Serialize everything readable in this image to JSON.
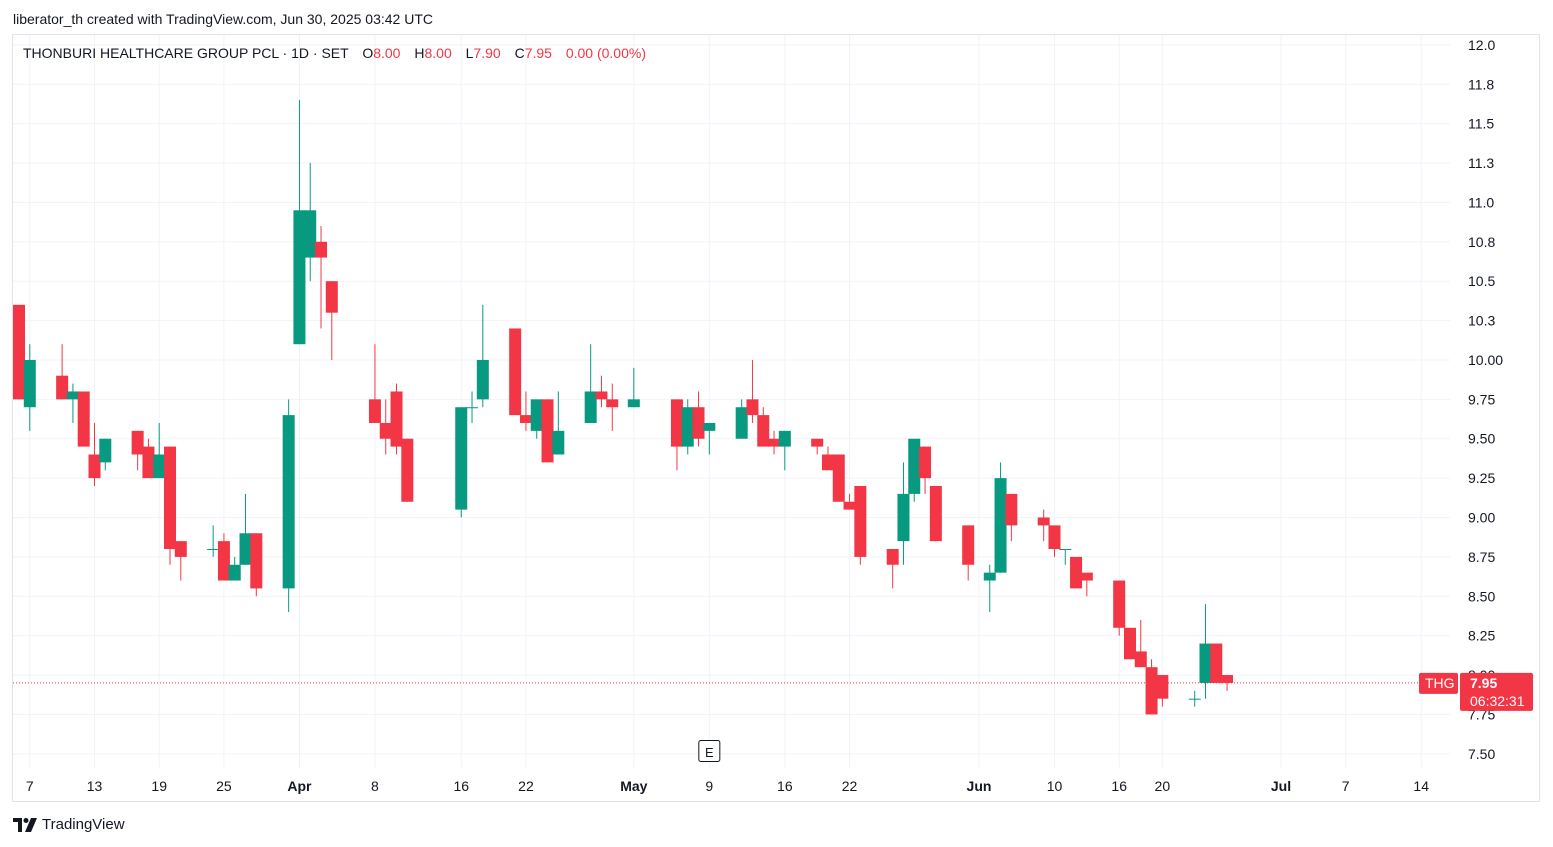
{
  "header": {
    "attribution": "liberator_th created with TradingView.com, Jun 30, 2025 03:42 UTC"
  },
  "legend": {
    "symbol_line": "THONBURI HEALTHCARE GROUP PCL · 1D · SET",
    "o_label": "O",
    "o_value": "8.00",
    "h_label": "H",
    "h_value": "8.00",
    "l_label": "L",
    "l_value": "7.90",
    "c_label": "C",
    "c_value": "7.95",
    "change": "0.00 (0.00%)"
  },
  "price_tag": {
    "symbol": "THG",
    "price": "7.95",
    "countdown": "06:32:31"
  },
  "footer": {
    "brand": "TradingView"
  },
  "colors": {
    "up": "#089981",
    "down": "#f23645",
    "grid": "#f0f3fa",
    "text": "#131722"
  },
  "chart_data": {
    "type": "candlestick",
    "y_axis_side": "right",
    "ylim": [
      7.41,
      12.05
    ],
    "yticks": [
      7.5,
      7.75,
      8.0,
      8.25,
      8.5,
      8.75,
      9.0,
      9.25,
      9.5,
      9.75,
      10.0,
      10.25,
      10.5,
      10.75,
      11.0,
      11.25,
      11.5,
      11.75,
      12.0
    ],
    "ytick_labels": [
      "7.50",
      "7.75",
      "8.00",
      "8.25",
      "8.50",
      "8.75",
      "9.00",
      "9.25",
      "9.50",
      "9.75",
      "10.00",
      "10.3",
      "10.5",
      "10.8",
      "11.0",
      "11.3",
      "11.5",
      "11.8",
      "12.0"
    ],
    "xlim": [
      "2025-03-06",
      "2025-07-15"
    ],
    "xticks": [
      {
        "date": "2025-03-07",
        "label": "7",
        "bold": false
      },
      {
        "date": "2025-03-13",
        "label": "13",
        "bold": false
      },
      {
        "date": "2025-03-19",
        "label": "19",
        "bold": false
      },
      {
        "date": "2025-03-25",
        "label": "25",
        "bold": false
      },
      {
        "date": "2025-04-01",
        "label": "Apr",
        "bold": true
      },
      {
        "date": "2025-04-08",
        "label": "8",
        "bold": false
      },
      {
        "date": "2025-04-16",
        "label": "16",
        "bold": false
      },
      {
        "date": "2025-04-22",
        "label": "22",
        "bold": false
      },
      {
        "date": "2025-05-02",
        "label": "May",
        "bold": true
      },
      {
        "date": "2025-05-09",
        "label": "9",
        "bold": false
      },
      {
        "date": "2025-05-16",
        "label": "16",
        "bold": false
      },
      {
        "date": "2025-05-22",
        "label": "22",
        "bold": false
      },
      {
        "date": "2025-06-03",
        "label": "Jun",
        "bold": true
      },
      {
        "date": "2025-06-10",
        "label": "10",
        "bold": false
      },
      {
        "date": "2025-06-16",
        "label": "16",
        "bold": false
      },
      {
        "date": "2025-06-20",
        "label": "20",
        "bold": false
      },
      {
        "date": "2025-07-01",
        "label": "Jul",
        "bold": true
      },
      {
        "date": "2025-07-07",
        "label": "7",
        "bold": false
      },
      {
        "date": "2025-07-14",
        "label": "14",
        "bold": false
      }
    ],
    "last_price": 7.95,
    "earnings_marker": {
      "date": "2025-05-09",
      "label": "E"
    },
    "candles": [
      {
        "date": "2025-03-06",
        "o": 10.35,
        "h": 10.35,
        "l": 9.75,
        "c": 9.75
      },
      {
        "date": "2025-03-07",
        "o": 9.7,
        "h": 10.1,
        "l": 9.55,
        "c": 10.0
      },
      {
        "date": "2025-03-10",
        "o": 9.9,
        "h": 10.1,
        "l": 9.75,
        "c": 9.75
      },
      {
        "date": "2025-03-11",
        "o": 9.75,
        "h": 9.85,
        "l": 9.6,
        "c": 9.8
      },
      {
        "date": "2025-03-12",
        "o": 9.8,
        "h": 9.8,
        "l": 9.45,
        "c": 9.45
      },
      {
        "date": "2025-03-13",
        "o": 9.4,
        "h": 9.6,
        "l": 9.2,
        "c": 9.25
      },
      {
        "date": "2025-03-14",
        "o": 9.35,
        "h": 9.5,
        "l": 9.3,
        "c": 9.5
      },
      {
        "date": "2025-03-17",
        "o": 9.55,
        "h": 9.55,
        "l": 9.3,
        "c": 9.4
      },
      {
        "date": "2025-03-18",
        "o": 9.45,
        "h": 9.5,
        "l": 9.25,
        "c": 9.25
      },
      {
        "date": "2025-03-19",
        "o": 9.25,
        "h": 9.6,
        "l": 9.25,
        "c": 9.4
      },
      {
        "date": "2025-03-20",
        "o": 9.45,
        "h": 9.45,
        "l": 8.7,
        "c": 8.8
      },
      {
        "date": "2025-03-21",
        "o": 8.85,
        "h": 8.85,
        "l": 8.6,
        "c": 8.75
      },
      {
        "date": "2025-03-24",
        "o": 8.8,
        "h": 8.95,
        "l": 8.75,
        "c": 8.8
      },
      {
        "date": "2025-03-25",
        "o": 8.85,
        "h": 8.9,
        "l": 8.6,
        "c": 8.6
      },
      {
        "date": "2025-03-26",
        "o": 8.6,
        "h": 8.75,
        "l": 8.6,
        "c": 8.7
      },
      {
        "date": "2025-03-27",
        "o": 8.7,
        "h": 9.15,
        "l": 8.7,
        "c": 8.9
      },
      {
        "date": "2025-03-28",
        "o": 8.9,
        "h": 8.9,
        "l": 8.5,
        "c": 8.55
      },
      {
        "date": "2025-03-31",
        "o": 8.55,
        "h": 9.75,
        "l": 8.4,
        "c": 9.65
      },
      {
        "date": "2025-04-01",
        "o": 10.1,
        "h": 11.65,
        "l": 10.1,
        "c": 10.95
      },
      {
        "date": "2025-04-02",
        "o": 10.65,
        "h": 11.25,
        "l": 10.5,
        "c": 10.95
      },
      {
        "date": "2025-04-03",
        "o": 10.75,
        "h": 10.85,
        "l": 10.2,
        "c": 10.65
      },
      {
        "date": "2025-04-04",
        "o": 10.5,
        "h": 10.5,
        "l": 10.0,
        "c": 10.3
      },
      {
        "date": "2025-04-08",
        "o": 9.75,
        "h": 10.1,
        "l": 9.6,
        "c": 9.6
      },
      {
        "date": "2025-04-09",
        "o": 9.6,
        "h": 9.75,
        "l": 9.4,
        "c": 9.5
      },
      {
        "date": "2025-04-10",
        "o": 9.8,
        "h": 9.85,
        "l": 9.4,
        "c": 9.45
      },
      {
        "date": "2025-04-11",
        "o": 9.5,
        "h": 9.5,
        "l": 9.1,
        "c": 9.1
      },
      {
        "date": "2025-04-16",
        "o": 9.05,
        "h": 9.7,
        "l": 9.0,
        "c": 9.7
      },
      {
        "date": "2025-04-17",
        "o": 9.7,
        "h": 9.8,
        "l": 9.6,
        "c": 9.7
      },
      {
        "date": "2025-04-18",
        "o": 9.75,
        "h": 10.35,
        "l": 9.7,
        "c": 10.0
      },
      {
        "date": "2025-04-21",
        "o": 10.2,
        "h": 10.2,
        "l": 9.65,
        "c": 9.65
      },
      {
        "date": "2025-04-22",
        "o": 9.65,
        "h": 9.8,
        "l": 9.55,
        "c": 9.6
      },
      {
        "date": "2025-04-23",
        "o": 9.55,
        "h": 9.75,
        "l": 9.5,
        "c": 9.75
      },
      {
        "date": "2025-04-24",
        "o": 9.75,
        "h": 9.75,
        "l": 9.35,
        "c": 9.35
      },
      {
        "date": "2025-04-25",
        "o": 9.4,
        "h": 9.8,
        "l": 9.4,
        "c": 9.55
      },
      {
        "date": "2025-04-28",
        "o": 9.6,
        "h": 10.1,
        "l": 9.6,
        "c": 9.8
      },
      {
        "date": "2025-04-29",
        "o": 9.8,
        "h": 9.9,
        "l": 9.7,
        "c": 9.75
      },
      {
        "date": "2025-04-30",
        "o": 9.75,
        "h": 9.85,
        "l": 9.55,
        "c": 9.7
      },
      {
        "date": "2025-05-02",
        "o": 9.7,
        "h": 9.95,
        "l": 9.7,
        "c": 9.75
      },
      {
        "date": "2025-05-06",
        "o": 9.75,
        "h": 9.75,
        "l": 9.3,
        "c": 9.45
      },
      {
        "date": "2025-05-07",
        "o": 9.45,
        "h": 9.75,
        "l": 9.4,
        "c": 9.7
      },
      {
        "date": "2025-05-08",
        "o": 9.7,
        "h": 9.8,
        "l": 9.45,
        "c": 9.5
      },
      {
        "date": "2025-05-09",
        "o": 9.55,
        "h": 9.6,
        "l": 9.4,
        "c": 9.6
      },
      {
        "date": "2025-05-12",
        "o": 9.5,
        "h": 9.75,
        "l": 9.5,
        "c": 9.7
      },
      {
        "date": "2025-05-13",
        "o": 9.75,
        "h": 10.0,
        "l": 9.6,
        "c": 9.65
      },
      {
        "date": "2025-05-14",
        "o": 9.65,
        "h": 9.7,
        "l": 9.45,
        "c": 9.45
      },
      {
        "date": "2025-05-15",
        "o": 9.5,
        "h": 9.55,
        "l": 9.4,
        "c": 9.45
      },
      {
        "date": "2025-05-16",
        "o": 9.45,
        "h": 9.55,
        "l": 9.3,
        "c": 9.55
      },
      {
        "date": "2025-05-19",
        "o": 9.5,
        "h": 9.5,
        "l": 9.4,
        "c": 9.45
      },
      {
        "date": "2025-05-20",
        "o": 9.4,
        "h": 9.45,
        "l": 9.3,
        "c": 9.3
      },
      {
        "date": "2025-05-21",
        "o": 9.4,
        "h": 9.4,
        "l": 9.1,
        "c": 9.1
      },
      {
        "date": "2025-05-22",
        "o": 9.1,
        "h": 9.15,
        "l": 9.05,
        "c": 9.05
      },
      {
        "date": "2025-05-23",
        "o": 9.2,
        "h": 9.2,
        "l": 8.7,
        "c": 8.75
      },
      {
        "date": "2025-05-26",
        "o": 8.8,
        "h": 8.8,
        "l": 8.55,
        "c": 8.7
      },
      {
        "date": "2025-05-27",
        "o": 8.85,
        "h": 9.35,
        "l": 8.7,
        "c": 9.15
      },
      {
        "date": "2025-05-28",
        "o": 9.15,
        "h": 9.5,
        "l": 9.1,
        "c": 9.5
      },
      {
        "date": "2025-05-29",
        "o": 9.45,
        "h": 9.45,
        "l": 9.15,
        "c": 9.25
      },
      {
        "date": "2025-05-30",
        "o": 9.2,
        "h": 9.2,
        "l": 8.85,
        "c": 8.85
      },
      {
        "date": "2025-06-02",
        "o": 8.95,
        "h": 8.95,
        "l": 8.6,
        "c": 8.7
      },
      {
        "date": "2025-06-04",
        "o": 8.6,
        "h": 8.7,
        "l": 8.4,
        "c": 8.65
      },
      {
        "date": "2025-06-05",
        "o": 8.65,
        "h": 9.35,
        "l": 8.65,
        "c": 9.25
      },
      {
        "date": "2025-06-06",
        "o": 9.15,
        "h": 9.15,
        "l": 8.85,
        "c": 8.95
      },
      {
        "date": "2025-06-09",
        "o": 9.0,
        "h": 9.05,
        "l": 8.85,
        "c": 8.95
      },
      {
        "date": "2025-06-10",
        "o": 8.95,
        "h": 8.95,
        "l": 8.75,
        "c": 8.8
      },
      {
        "date": "2025-06-11",
        "o": 8.8,
        "h": 8.8,
        "l": 8.7,
        "c": 8.8
      },
      {
        "date": "2025-06-12",
        "o": 8.75,
        "h": 8.75,
        "l": 8.55,
        "c": 8.55
      },
      {
        "date": "2025-06-13",
        "o": 8.65,
        "h": 8.65,
        "l": 8.5,
        "c": 8.6
      },
      {
        "date": "2025-06-16",
        "o": 8.6,
        "h": 8.6,
        "l": 8.25,
        "c": 8.3
      },
      {
        "date": "2025-06-17",
        "o": 8.3,
        "h": 8.3,
        "l": 8.1,
        "c": 8.1
      },
      {
        "date": "2025-06-18",
        "o": 8.15,
        "h": 8.35,
        "l": 8.05,
        "c": 8.05
      },
      {
        "date": "2025-06-19",
        "o": 8.05,
        "h": 8.1,
        "l": 7.75,
        "c": 7.75
      },
      {
        "date": "2025-06-20",
        "o": 8.0,
        "h": 8.0,
        "l": 7.8,
        "c": 7.85
      },
      {
        "date": "2025-06-23",
        "o": 7.85,
        "h": 7.9,
        "l": 7.8,
        "c": 7.85
      },
      {
        "date": "2025-06-24",
        "o": 7.95,
        "h": 8.45,
        "l": 7.85,
        "c": 8.2
      },
      {
        "date": "2025-06-25",
        "o": 8.2,
        "h": 8.2,
        "l": 7.95,
        "c": 7.95
      },
      {
        "date": "2025-06-26",
        "o": 8.0,
        "h": 8.0,
        "l": 7.9,
        "c": 7.95
      }
    ]
  }
}
